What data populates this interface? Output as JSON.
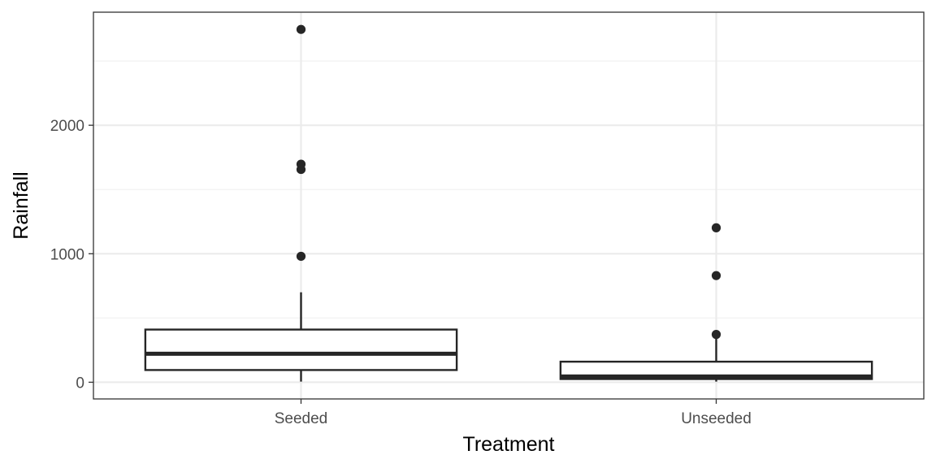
{
  "chart_data": {
    "type": "box",
    "title": "",
    "xlabel": "Treatment",
    "ylabel": "Rainfall",
    "categories": [
      "Seeded",
      "Unseeded"
    ],
    "ylim": [
      -130,
      2880
    ],
    "yticks": [
      0,
      1000,
      2000
    ],
    "ytick_labels": [
      "0",
      "1000",
      "2000"
    ],
    "ygrid_minor": [
      500,
      1500,
      2500
    ],
    "grid": true,
    "boxes": [
      {
        "category": "Seeded",
        "lower_whisker": 5,
        "q1": 95,
        "median": 222,
        "q3": 410,
        "upper_whisker": 700,
        "outliers": [
          980,
          1656,
          1697,
          2746
        ]
      },
      {
        "category": "Unseeded",
        "lower_whisker": 5,
        "q1": 25,
        "median": 45,
        "q3": 160,
        "upper_whisker": 345,
        "outliers": [
          372,
          830,
          1202
        ]
      }
    ],
    "colors": {
      "box_stroke": "#262626",
      "box_fill": "#ffffff",
      "point": "#262626",
      "grid_major": "#ebebeb",
      "grid_minor": "#f2f2f2",
      "panel_border": "#333333"
    }
  }
}
